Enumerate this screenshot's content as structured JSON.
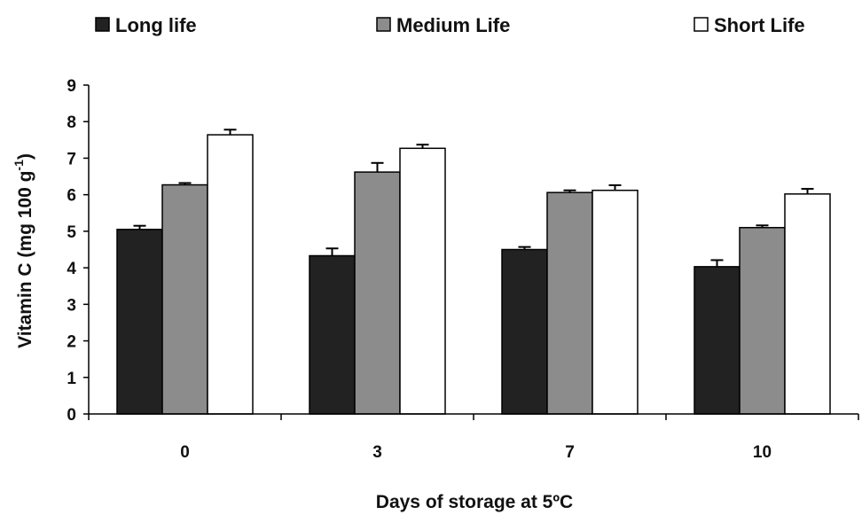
{
  "chart_data": {
    "type": "bar",
    "categories": [
      "0",
      "3",
      "7",
      "10"
    ],
    "series": [
      {
        "name": "Long life",
        "color": "#222222",
        "values": [
          5.05,
          4.33,
          4.5,
          4.03
        ],
        "errors": [
          0.1,
          0.2,
          0.07,
          0.18
        ]
      },
      {
        "name": "Medium Life",
        "color": "#8c8c8c",
        "values": [
          6.27,
          6.62,
          6.06,
          5.1
        ],
        "errors": [
          0.05,
          0.25,
          0.06,
          0.06
        ]
      },
      {
        "name": "Short Life",
        "color": "#ffffff",
        "values": [
          7.64,
          7.27,
          6.12,
          6.02
        ],
        "errors": [
          0.14,
          0.1,
          0.14,
          0.14
        ]
      }
    ],
    "xlabel": "Days of storage at 5ºC",
    "ylabel": {
      "prefix": "Vitamin C (mg 100 g",
      "superscript": "-1",
      "suffix": ")"
    },
    "ylim": [
      0,
      9
    ],
    "yticks": [
      "0",
      "1",
      "2",
      "3",
      "4",
      "5",
      "6",
      "7",
      "8",
      "9"
    ],
    "legend_position": "top",
    "grid": false
  }
}
